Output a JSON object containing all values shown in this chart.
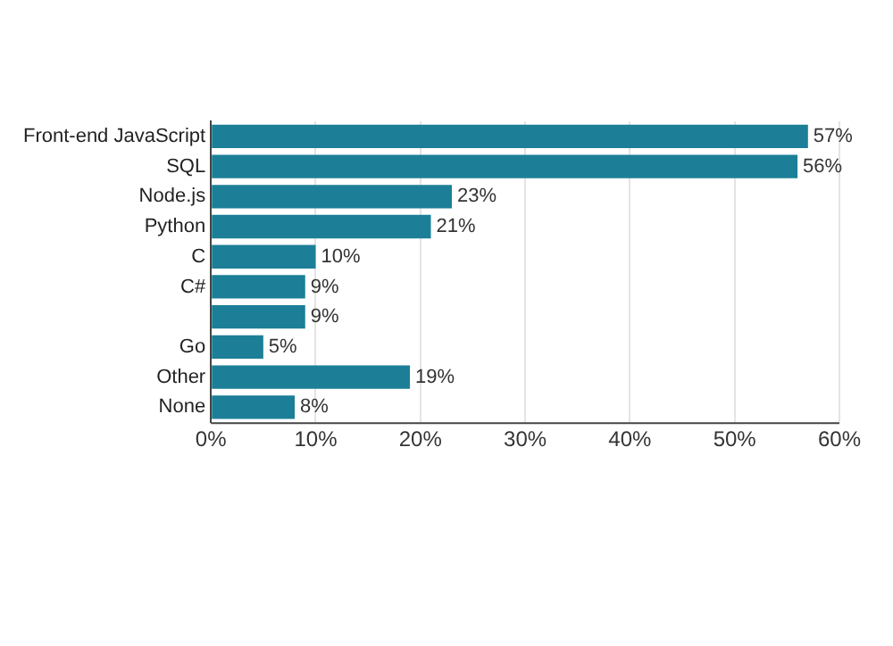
{
  "chart_data": {
    "type": "bar",
    "orientation": "horizontal",
    "categories": [
      "Front-end JavaScript",
      "SQL",
      "Node.js",
      "Python",
      "C",
      "C#",
      null,
      "Go",
      "Other",
      "None"
    ],
    "values": [
      57,
      56,
      23,
      21,
      10,
      9,
      9,
      5,
      19,
      8
    ],
    "value_labels": [
      "57%",
      "56%",
      "23%",
      "21%",
      "10%",
      "9%",
      "9%",
      "5%",
      "19%",
      "8%"
    ],
    "color": "#1c7f97",
    "xlim": [
      0,
      60
    ],
    "xticks": [
      {
        "value": 0,
        "label": "0%"
      },
      {
        "value": 10,
        "label": "10%"
      },
      {
        "value": 20,
        "label": "20%"
      },
      {
        "value": 30,
        "label": "30%"
      },
      {
        "value": 40,
        "label": "40%"
      },
      {
        "value": 50,
        "label": "50%"
      },
      {
        "value": 60,
        "label": "60%"
      }
    ],
    "grid": "x",
    "legend": false
  }
}
